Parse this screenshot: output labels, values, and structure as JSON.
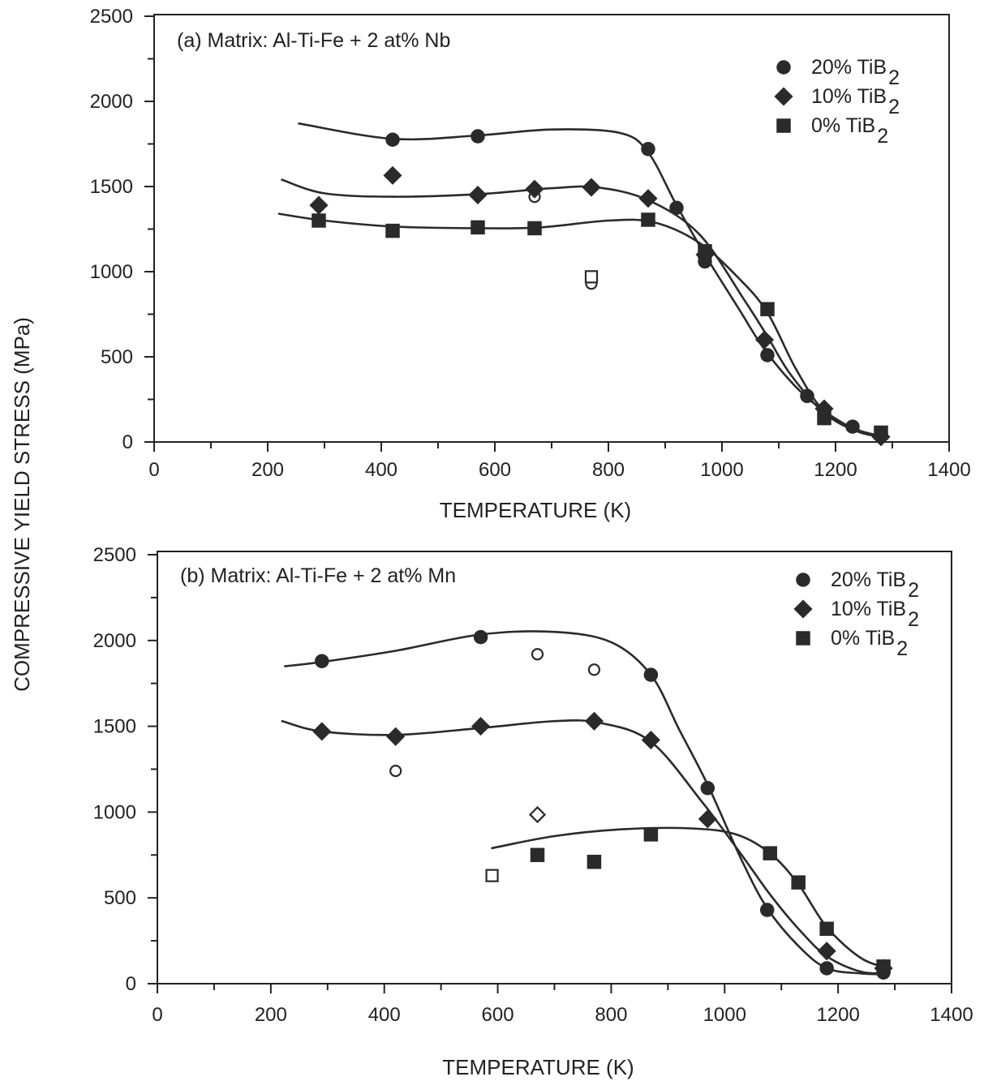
{
  "ylabel": "COMPRESSIVE YIELD STRESS (MPa)",
  "chart_data": [
    {
      "type": "scatter",
      "title": "(a)  Matrix: Al-Ti-Fe + 2 at% Nb",
      "xlabel": "TEMPERATURE (K)",
      "ylabel": "COMPRESSIVE YIELD STRESS (MPa)",
      "xlim": [
        0,
        1400
      ],
      "ylim": [
        0,
        2500
      ],
      "xticks": [
        "0",
        "200",
        "400",
        "600",
        "800",
        "1000",
        "1200",
        "1400"
      ],
      "yticks": [
        "0",
        "500",
        "1000",
        "1500",
        "2000",
        "2500"
      ],
      "legend_position": "top-right",
      "legend": [
        {
          "marker": "circle",
          "label": "20% TiB",
          "subscript": "2"
        },
        {
          "marker": "diamond",
          "label": "10% TiB",
          "subscript": "2"
        },
        {
          "marker": "square",
          "label": "0% TiB ",
          "subscript": "2"
        }
      ],
      "series": [
        {
          "name": "20% TiB2",
          "marker": "circle",
          "points": [
            [
              420,
              1775
            ],
            [
              570,
              1795
            ],
            [
              870,
              1720
            ],
            [
              920,
              1375
            ],
            [
              970,
              1060
            ],
            [
              1080,
              510
            ],
            [
              1150,
              270
            ],
            [
              1230,
              90
            ],
            [
              1280,
              40
            ]
          ],
          "open_points": [
            [
              670,
              1440
            ],
            [
              770,
              930
            ]
          ],
          "curve": [
            [
              255,
              1870
            ],
            [
              420,
              1780
            ],
            [
              570,
              1800
            ],
            [
              700,
              1835
            ],
            [
              820,
              1815
            ],
            [
              870,
              1700
            ],
            [
              920,
              1390
            ],
            [
              970,
              1100
            ],
            [
              1030,
              780
            ],
            [
              1080,
              520
            ],
            [
              1150,
              260
            ],
            [
              1230,
              80
            ],
            [
              1290,
              20
            ]
          ]
        },
        {
          "name": "10% TiB2",
          "marker": "diamond",
          "points": [
            [
              290,
              1390
            ],
            [
              420,
              1565
            ],
            [
              570,
              1450
            ],
            [
              670,
              1485
            ],
            [
              770,
              1495
            ],
            [
              870,
              1430
            ],
            [
              970,
              1100
            ],
            [
              1075,
              600
            ],
            [
              1180,
              195
            ],
            [
              1280,
              30
            ]
          ],
          "open_points": [],
          "curve": [
            [
              225,
              1540
            ],
            [
              300,
              1460
            ],
            [
              420,
              1440
            ],
            [
              570,
              1455
            ],
            [
              700,
              1490
            ],
            [
              780,
              1495
            ],
            [
              870,
              1420
            ],
            [
              960,
              1220
            ],
            [
              1040,
              830
            ],
            [
              1080,
              620
            ],
            [
              1120,
              400
            ],
            [
              1180,
              170
            ],
            [
              1240,
              60
            ],
            [
              1290,
              25
            ]
          ]
        },
        {
          "name": "0% TiB2",
          "marker": "square",
          "points": [
            [
              290,
              1300
            ],
            [
              420,
              1240
            ],
            [
              570,
              1260
            ],
            [
              670,
              1255
            ],
            [
              870,
              1305
            ],
            [
              970,
              1120
            ],
            [
              1080,
              780
            ],
            [
              1180,
              140
            ],
            [
              1280,
              55
            ]
          ],
          "open_points": [
            [
              770,
              970
            ]
          ],
          "curve": [
            [
              220,
              1340
            ],
            [
              300,
              1300
            ],
            [
              420,
              1265
            ],
            [
              570,
              1255
            ],
            [
              680,
              1260
            ],
            [
              800,
              1300
            ],
            [
              880,
              1290
            ],
            [
              960,
              1170
            ],
            [
              1030,
              960
            ],
            [
              1080,
              760
            ],
            [
              1130,
              430
            ],
            [
              1180,
              180
            ],
            [
              1240,
              70
            ],
            [
              1290,
              30
            ]
          ]
        }
      ]
    },
    {
      "type": "scatter",
      "title": "(b)  Matrix: Al-Ti-Fe + 2 at% Mn",
      "xlabel": "TEMPERATURE (K)",
      "ylabel": "COMPRESSIVE YIELD STRESS (MPa)",
      "xlim": [
        0,
        1400
      ],
      "ylim": [
        0,
        2500
      ],
      "xticks": [
        "0",
        "200",
        "400",
        "600",
        "800",
        "1000",
        "1200",
        "1400"
      ],
      "yticks": [
        "0",
        "500",
        "1000",
        "1500",
        "2000",
        "2500"
      ],
      "legend_position": "top-right",
      "legend": [
        {
          "marker": "circle",
          "label": "20% TiB",
          "subscript": "2"
        },
        {
          "marker": "diamond",
          "label": "10% TiB",
          "subscript": "2"
        },
        {
          "marker": "square",
          "label": "0% TiB ",
          "subscript": "2"
        }
      ],
      "series": [
        {
          "name": "20% TiB2",
          "marker": "circle",
          "points": [
            [
              290,
              1880
            ],
            [
              570,
              2020
            ],
            [
              870,
              1800
            ],
            [
              970,
              1140
            ],
            [
              1075,
              430
            ],
            [
              1180,
              90
            ],
            [
              1280,
              65
            ]
          ],
          "open_points": [
            [
              670,
              1920
            ],
            [
              770,
              1830
            ],
            [
              420,
              1240
            ]
          ],
          "curve": [
            [
              225,
              1850
            ],
            [
              290,
              1875
            ],
            [
              420,
              1940
            ],
            [
              570,
              2035
            ],
            [
              700,
              2050
            ],
            [
              800,
              1990
            ],
            [
              870,
              1800
            ],
            [
              920,
              1480
            ],
            [
              970,
              1160
            ],
            [
              1030,
              720
            ],
            [
              1075,
              440
            ],
            [
              1130,
              220
            ],
            [
              1180,
              90
            ],
            [
              1240,
              60
            ],
            [
              1290,
              55
            ]
          ]
        },
        {
          "name": "10% TiB2",
          "marker": "diamond",
          "points": [
            [
              290,
              1470
            ],
            [
              420,
              1440
            ],
            [
              570,
              1500
            ],
            [
              770,
              1530
            ],
            [
              870,
              1420
            ],
            [
              970,
              960
            ],
            [
              1180,
              190
            ],
            [
              1280,
              90
            ]
          ],
          "open_points": [
            [
              670,
              985
            ]
          ],
          "curve": [
            [
              220,
              1530
            ],
            [
              290,
              1470
            ],
            [
              420,
              1450
            ],
            [
              570,
              1490
            ],
            [
              700,
              1530
            ],
            [
              780,
              1520
            ],
            [
              870,
              1410
            ],
            [
              960,
              1060
            ],
            [
              1030,
              750
            ],
            [
              1080,
              520
            ],
            [
              1130,
              320
            ],
            [
              1180,
              160
            ],
            [
              1240,
              70
            ],
            [
              1290,
              60
            ]
          ]
        },
        {
          "name": "0% TiB2",
          "marker": "square",
          "points": [
            [
              670,
              750
            ],
            [
              770,
              710
            ],
            [
              870,
              870
            ],
            [
              1080,
              760
            ],
            [
              1130,
              590
            ],
            [
              1180,
              320
            ],
            [
              1280,
              100
            ]
          ],
          "open_points": [
            [
              590,
              630
            ]
          ],
          "curve": [
            [
              590,
              790
            ],
            [
              700,
              860
            ],
            [
              820,
              900
            ],
            [
              940,
              905
            ],
            [
              1020,
              870
            ],
            [
              1080,
              760
            ],
            [
              1130,
              580
            ],
            [
              1180,
              330
            ],
            [
              1240,
              150
            ],
            [
              1290,
              90
            ]
          ]
        }
      ]
    }
  ]
}
